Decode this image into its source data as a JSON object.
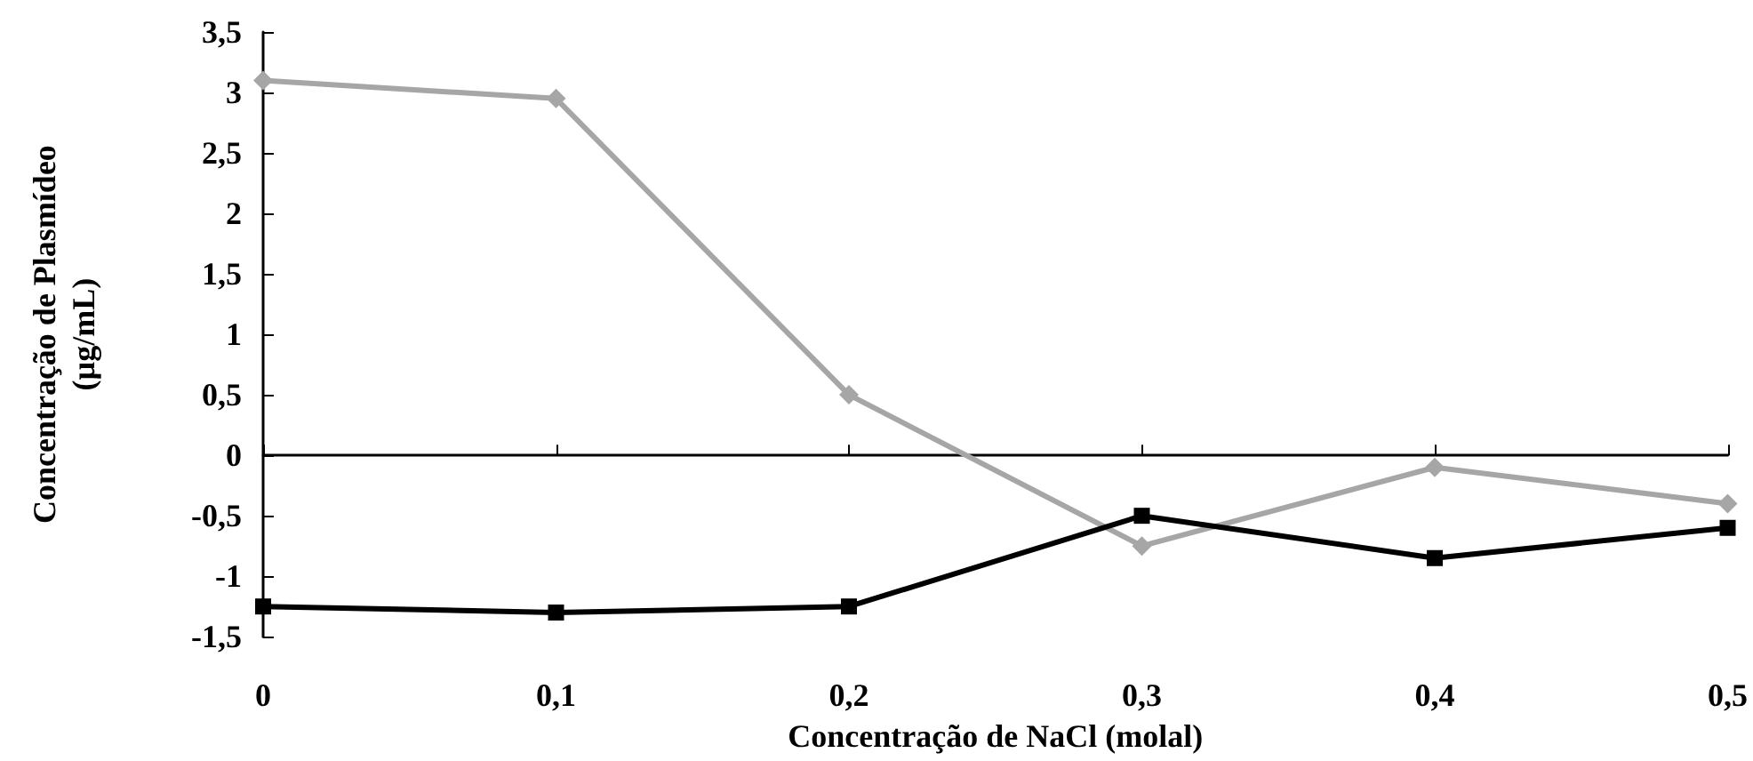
{
  "chart_data": {
    "type": "line",
    "xlabel": "Concentração de NaCl (molal)",
    "ylabel": "Concentração de Plasmídeo\n(µg/mL)",
    "x": [
      0,
      0.1,
      0.2,
      0.3,
      0.4,
      0.5
    ],
    "series": [
      {
        "color": "#a6a6a6",
        "marker": "diamond",
        "values": [
          3.1,
          2.95,
          0.5,
          -0.75,
          -0.1,
          -0.4
        ]
      },
      {
        "color": "#000000",
        "marker": "square",
        "values": [
          -1.25,
          -1.3,
          -1.25,
          -0.5,
          -0.85,
          -0.6
        ]
      }
    ],
    "xlim": [
      0,
      0.5
    ],
    "xticks": [
      {
        "value": 0,
        "label": "0"
      },
      {
        "value": 0.1,
        "label": "0,1"
      },
      {
        "value": 0.2,
        "label": "0,2"
      },
      {
        "value": 0.3,
        "label": "0,3"
      },
      {
        "value": 0.4,
        "label": "0,4"
      },
      {
        "value": 0.5,
        "label": "0,5"
      }
    ],
    "ylim": [
      -1.5,
      3.5
    ],
    "yticks": [
      {
        "value": -1.5,
        "label": "-1,5"
      },
      {
        "value": -1,
        "label": "-1"
      },
      {
        "value": -0.5,
        "label": "-0,5"
      },
      {
        "value": 0,
        "label": "0"
      },
      {
        "value": 0.5,
        "label": "0,5"
      },
      {
        "value": 1,
        "label": "1"
      },
      {
        "value": 1.5,
        "label": "1,5"
      },
      {
        "value": 2,
        "label": "2"
      },
      {
        "value": 2.5,
        "label": "2,5"
      },
      {
        "value": 3,
        "label": "3"
      },
      {
        "value": 3.5,
        "label": "3,5"
      }
    ],
    "line_style": "solid"
  }
}
